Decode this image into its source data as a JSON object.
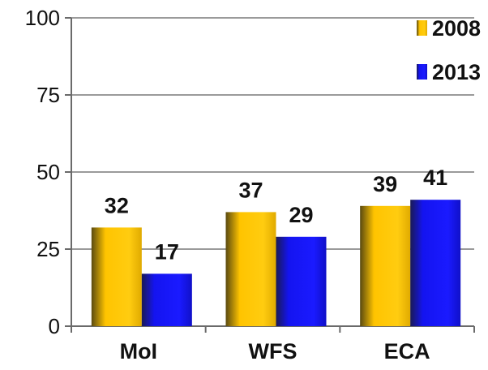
{
  "chart_data": {
    "type": "bar",
    "title": "",
    "xlabel": "",
    "ylabel": "",
    "categories": [
      "MoI",
      "WFS",
      "ECA"
    ],
    "series": [
      {
        "name": "2008",
        "values": [
          32,
          37,
          39
        ],
        "color": "#FFC400"
      },
      {
        "name": "2013",
        "values": [
          17,
          29,
          41
        ],
        "color": "#1414F0"
      }
    ],
    "ylim": [
      0,
      100
    ],
    "yticks": [
      0,
      25,
      50,
      75,
      100
    ],
    "grid": true,
    "legend": "top-right",
    "data_labels": true
  }
}
